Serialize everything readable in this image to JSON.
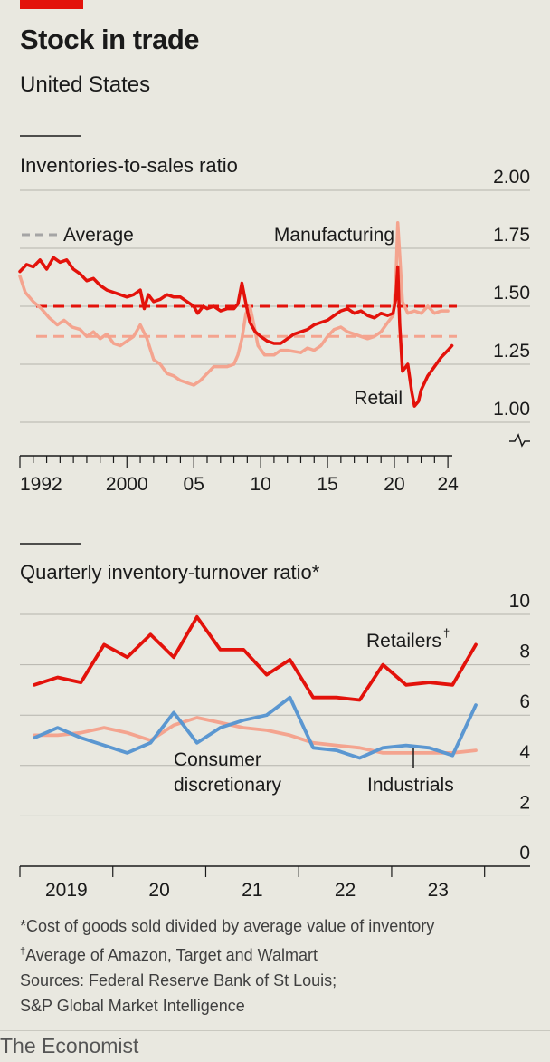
{
  "title": "Stock in trade",
  "subtitle": "United States",
  "notes": {
    "footnote1": "*Cost of goods sold divided by average value of inventory",
    "footnote2_mark": "†",
    "footnote2": "Average of Amazon, Target and Walmart",
    "sources_line1": "Sources: Federal Reserve Bank of St Louis;",
    "sources_line2": "S&P Global Market Intelligence"
  },
  "brand": "The Economist",
  "colors": {
    "retail": "#e3120b",
    "manufacturing": "#f4a48f",
    "consumer_discretionary": "#5b97d1",
    "industrials": "#f4a48f",
    "grid": "#b5b4ad",
    "axis": "#1a1a1a",
    "average": "#a5a5a5"
  },
  "chart_data": [
    {
      "type": "line",
      "title": "Inventories-to-sales ratio",
      "ylim": [
        1.0,
        2.0
      ],
      "yticks": [
        "2.00",
        "1.75",
        "1.50",
        "1.25",
        "1.00"
      ],
      "xlim": [
        1992,
        2024.33
      ],
      "xtick_labels": [
        "1992",
        "2000",
        "05",
        "10",
        "15",
        "20",
        "24"
      ],
      "xtick_positions": [
        1992,
        2000,
        2005,
        2010,
        2015,
        2020,
        2024
      ],
      "legend": {
        "average_label": "Average"
      },
      "series": [
        {
          "name": "Manufacturing",
          "color_key": "manufacturing",
          "average": 1.37,
          "points": [
            [
              1992.0,
              1.63
            ],
            [
              1992.4,
              1.56
            ],
            [
              1993.0,
              1.52
            ],
            [
              1993.6,
              1.49
            ],
            [
              1994.2,
              1.45
            ],
            [
              1994.8,
              1.42
            ],
            [
              1995.3,
              1.44
            ],
            [
              1995.9,
              1.41
            ],
            [
              1996.5,
              1.4
            ],
            [
              1997.0,
              1.37
            ],
            [
              1997.5,
              1.39
            ],
            [
              1998.0,
              1.36
            ],
            [
              1998.5,
              1.38
            ],
            [
              1999.0,
              1.34
            ],
            [
              1999.5,
              1.33
            ],
            [
              2000.0,
              1.35
            ],
            [
              2000.5,
              1.37
            ],
            [
              2001.0,
              1.42
            ],
            [
              2001.5,
              1.36
            ],
            [
              2002.0,
              1.27
            ],
            [
              2002.5,
              1.25
            ],
            [
              2003.0,
              1.21
            ],
            [
              2003.5,
              1.2
            ],
            [
              2004.0,
              1.18
            ],
            [
              2004.5,
              1.17
            ],
            [
              2005.0,
              1.16
            ],
            [
              2005.5,
              1.18
            ],
            [
              2006.0,
              1.21
            ],
            [
              2006.5,
              1.24
            ],
            [
              2007.0,
              1.24
            ],
            [
              2007.5,
              1.24
            ],
            [
              2008.0,
              1.25
            ],
            [
              2008.3,
              1.29
            ],
            [
              2008.6,
              1.36
            ],
            [
              2008.9,
              1.47
            ],
            [
              2009.2,
              1.5
            ],
            [
              2009.5,
              1.42
            ],
            [
              2009.8,
              1.33
            ],
            [
              2010.3,
              1.29
            ],
            [
              2011.0,
              1.29
            ],
            [
              2011.5,
              1.31
            ],
            [
              2012.0,
              1.31
            ],
            [
              2013.0,
              1.3
            ],
            [
              2013.5,
              1.32
            ],
            [
              2014.0,
              1.31
            ],
            [
              2014.5,
              1.33
            ],
            [
              2015.0,
              1.37
            ],
            [
              2015.5,
              1.4
            ],
            [
              2016.0,
              1.41
            ],
            [
              2016.5,
              1.39
            ],
            [
              2017.0,
              1.38
            ],
            [
              2017.5,
              1.37
            ],
            [
              2018.0,
              1.36
            ],
            [
              2018.5,
              1.37
            ],
            [
              2019.0,
              1.39
            ],
            [
              2019.5,
              1.43
            ],
            [
              2019.9,
              1.46
            ],
            [
              2020.1,
              1.6
            ],
            [
              2020.25,
              1.86
            ],
            [
              2020.4,
              1.72
            ],
            [
              2020.6,
              1.52
            ],
            [
              2021.0,
              1.47
            ],
            [
              2021.5,
              1.48
            ],
            [
              2022.0,
              1.47
            ],
            [
              2022.5,
              1.5
            ],
            [
              2023.0,
              1.47
            ],
            [
              2023.5,
              1.48
            ],
            [
              2024.0,
              1.48
            ]
          ]
        },
        {
          "name": "Retail",
          "color_key": "retail",
          "average": 1.5,
          "points": [
            [
              1992.0,
              1.65
            ],
            [
              1992.5,
              1.68
            ],
            [
              1993.0,
              1.67
            ],
            [
              1993.5,
              1.7
            ],
            [
              1994.0,
              1.66
            ],
            [
              1994.5,
              1.71
            ],
            [
              1995.0,
              1.69
            ],
            [
              1995.5,
              1.7
            ],
            [
              1996.0,
              1.66
            ],
            [
              1996.5,
              1.64
            ],
            [
              1997.0,
              1.61
            ],
            [
              1997.5,
              1.62
            ],
            [
              1998.0,
              1.59
            ],
            [
              1998.5,
              1.57
            ],
            [
              1999.0,
              1.56
            ],
            [
              1999.5,
              1.55
            ],
            [
              2000.0,
              1.54
            ],
            [
              2000.5,
              1.55
            ],
            [
              2001.0,
              1.57
            ],
            [
              2001.3,
              1.49
            ],
            [
              2001.6,
              1.55
            ],
            [
              2002.0,
              1.52
            ],
            [
              2002.5,
              1.53
            ],
            [
              2003.0,
              1.55
            ],
            [
              2003.5,
              1.54
            ],
            [
              2004.0,
              1.54
            ],
            [
              2004.5,
              1.52
            ],
            [
              2005.0,
              1.5
            ],
            [
              2005.3,
              1.47
            ],
            [
              2005.7,
              1.5
            ],
            [
              2006.0,
              1.49
            ],
            [
              2006.5,
              1.5
            ],
            [
              2007.0,
              1.48
            ],
            [
              2007.5,
              1.49
            ],
            [
              2008.0,
              1.49
            ],
            [
              2008.3,
              1.51
            ],
            [
              2008.6,
              1.6
            ],
            [
              2008.9,
              1.51
            ],
            [
              2009.2,
              1.43
            ],
            [
              2009.6,
              1.39
            ],
            [
              2010.0,
              1.37
            ],
            [
              2010.5,
              1.35
            ],
            [
              2011.0,
              1.34
            ],
            [
              2011.5,
              1.34
            ],
            [
              2012.0,
              1.36
            ],
            [
              2012.5,
              1.38
            ],
            [
              2013.0,
              1.39
            ],
            [
              2013.5,
              1.4
            ],
            [
              2014.0,
              1.42
            ],
            [
              2014.5,
              1.43
            ],
            [
              2015.0,
              1.44
            ],
            [
              2015.5,
              1.46
            ],
            [
              2016.0,
              1.48
            ],
            [
              2016.5,
              1.49
            ],
            [
              2017.0,
              1.47
            ],
            [
              2017.5,
              1.48
            ],
            [
              2018.0,
              1.46
            ],
            [
              2018.5,
              1.45
            ],
            [
              2019.0,
              1.47
            ],
            [
              2019.5,
              1.46
            ],
            [
              2019.9,
              1.47
            ],
            [
              2020.1,
              1.53
            ],
            [
              2020.25,
              1.67
            ],
            [
              2020.4,
              1.42
            ],
            [
              2020.6,
              1.22
            ],
            [
              2021.0,
              1.25
            ],
            [
              2021.3,
              1.13
            ],
            [
              2021.5,
              1.07
            ],
            [
              2021.8,
              1.09
            ],
            [
              2022.0,
              1.14
            ],
            [
              2022.5,
              1.2
            ],
            [
              2023.0,
              1.24
            ],
            [
              2023.5,
              1.28
            ],
            [
              2024.0,
              1.31
            ],
            [
              2024.3,
              1.33
            ]
          ]
        }
      ],
      "annotations": [
        "Manufacturing",
        "Retail"
      ]
    },
    {
      "type": "line",
      "title": "Quarterly inventory-turnover ratio*",
      "ylim": [
        0,
        10
      ],
      "yticks": [
        "10",
        "8",
        "6",
        "4",
        "2",
        "0"
      ],
      "xtick_labels": [
        "2019",
        "20",
        "21",
        "22",
        "23"
      ],
      "x": [
        "2019 Q1",
        "2019 Q2",
        "2019 Q3",
        "2019 Q4",
        "2020 Q1",
        "2020 Q2",
        "2020 Q3",
        "2020 Q4",
        "2021 Q1",
        "2021 Q2",
        "2021 Q3",
        "2021 Q4",
        "2022 Q1",
        "2022 Q2",
        "2022 Q3",
        "2022 Q4",
        "2023 Q1",
        "2023 Q2",
        "2023 Q3",
        "2023 Q4"
      ],
      "series": [
        {
          "name": "Retailers",
          "name_mark": "†",
          "color_key": "retail",
          "values": [
            7.2,
            7.5,
            7.3,
            8.8,
            8.3,
            9.2,
            8.3,
            9.9,
            8.6,
            8.6,
            7.6,
            8.2,
            6.7,
            6.7,
            6.6,
            8.0,
            7.2,
            7.3,
            7.2,
            8.8
          ]
        },
        {
          "name": "Industrials",
          "color_key": "industrials",
          "values": [
            5.2,
            5.2,
            5.3,
            5.5,
            5.3,
            5.0,
            5.6,
            5.9,
            5.7,
            5.5,
            5.4,
            5.2,
            4.9,
            4.8,
            4.7,
            4.5,
            4.5,
            4.5,
            4.5,
            4.6
          ]
        },
        {
          "name": "Consumer discretionary",
          "name_lines": [
            "Consumer",
            "discretionary"
          ],
          "color_key": "consumer_discretionary",
          "values": [
            5.1,
            5.5,
            5.1,
            4.8,
            4.5,
            4.9,
            6.1,
            4.9,
            5.5,
            5.8,
            6.0,
            6.7,
            4.7,
            4.6,
            4.3,
            4.7,
            4.8,
            4.7,
            4.4,
            6.4
          ]
        }
      ]
    }
  ]
}
